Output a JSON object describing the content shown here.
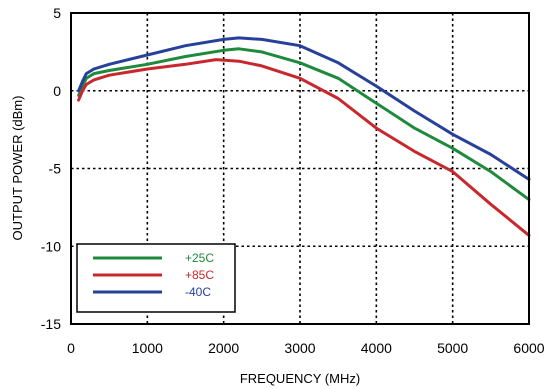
{
  "chart_data": {
    "type": "line",
    "xlabel": "FREQUENCY (MHz)",
    "ylabel": "OUTPUT POWER (dBm)",
    "xlim": [
      0,
      6000
    ],
    "ylim": [
      -15,
      5
    ],
    "xticks": [
      0,
      1000,
      2000,
      3000,
      4000,
      5000,
      6000
    ],
    "xtick_labels": [
      "0",
      "1000",
      "2000",
      "3000",
      "4000",
      "5000",
      "6000"
    ],
    "yticks": [
      -15,
      -10,
      -5,
      0,
      5
    ],
    "ytick_labels": [
      "-15",
      "-10",
      "-5",
      "0",
      "5"
    ],
    "grid": true,
    "legend_position": "bottom-left",
    "series": [
      {
        "name": "+25C",
        "color": "#1e8a3c",
        "x": [
          100,
          150,
          200,
          300,
          500,
          1000,
          1500,
          2000,
          2200,
          2500,
          3000,
          3500,
          4000,
          4500,
          5000,
          5500,
          6000
        ],
        "y": [
          -0.3,
          0.3,
          0.8,
          1.1,
          1.3,
          1.7,
          2.2,
          2.6,
          2.7,
          2.5,
          1.8,
          0.8,
          -0.8,
          -2.4,
          -3.7,
          -5.2,
          -7.0
        ]
      },
      {
        "name": "+85C",
        "color": "#c8282d",
        "x": [
          100,
          150,
          200,
          300,
          500,
          1000,
          1500,
          1900,
          2200,
          2500,
          3000,
          3500,
          4000,
          4500,
          5000,
          5500,
          6000
        ],
        "y": [
          -0.6,
          0.0,
          0.4,
          0.7,
          1.0,
          1.4,
          1.7,
          2.0,
          1.9,
          1.6,
          0.8,
          -0.5,
          -2.4,
          -3.9,
          -5.2,
          -7.3,
          -9.3
        ]
      },
      {
        "name": "-40C",
        "color": "#27409a",
        "x": [
          100,
          150,
          200,
          300,
          500,
          1000,
          1500,
          2000,
          2200,
          2500,
          3000,
          3500,
          4000,
          4500,
          5000,
          5500,
          6000
        ],
        "y": [
          0.0,
          0.6,
          1.1,
          1.4,
          1.7,
          2.3,
          2.9,
          3.3,
          3.4,
          3.3,
          2.9,
          1.8,
          0.3,
          -1.3,
          -2.8,
          -4.1,
          -5.7
        ]
      }
    ]
  }
}
